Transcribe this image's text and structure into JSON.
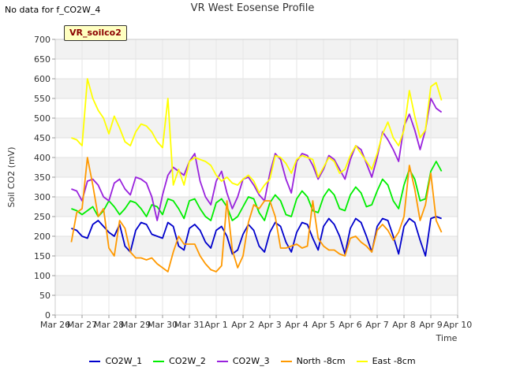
{
  "nodata": "No data for f_CO2W_4",
  "station": "VR_soilco2",
  "chart_data": {
    "type": "line",
    "title": "VR West Eosense Profile",
    "xlabel": "Time",
    "ylabel": "Soil CO2 (mV)",
    "ylim": [
      0,
      700
    ],
    "yticks": [
      0,
      50,
      100,
      150,
      200,
      250,
      300,
      350,
      400,
      450,
      500,
      550,
      600,
      650,
      700
    ],
    "xticks": [
      "Mar 26",
      "Mar 27",
      "Mar 28",
      "Mar 29",
      "Mar 30",
      "Mar 31",
      "Apr 1",
      "Apr 2",
      "Apr 3",
      "Apr 4",
      "Apr 5",
      "Apr 6",
      "Apr 7",
      "Apr 8",
      "Apr 9",
      "Apr 10"
    ],
    "xlim": [
      0,
      15
    ],
    "x": [
      0.6,
      0.8,
      1.0,
      1.2,
      1.4,
      1.6,
      1.8,
      2.0,
      2.2,
      2.4,
      2.6,
      2.8,
      3.0,
      3.2,
      3.4,
      3.6,
      3.8,
      4.0,
      4.2,
      4.4,
      4.6,
      4.8,
      5.0,
      5.2,
      5.4,
      5.6,
      5.8,
      6.0,
      6.2,
      6.4,
      6.6,
      6.8,
      7.0,
      7.2,
      7.4,
      7.6,
      7.8,
      8.0,
      8.2,
      8.4,
      8.6,
      8.8,
      9.0,
      9.2,
      9.4,
      9.6,
      9.8,
      10.0,
      10.2,
      10.4,
      10.6,
      10.8,
      11.0,
      11.2,
      11.4,
      11.6,
      11.8,
      12.0,
      12.2,
      12.4,
      12.6,
      12.8,
      13.0,
      13.2,
      13.4,
      13.6,
      13.8,
      14.0,
      14.2,
      14.4
    ],
    "grid": true,
    "legend_position": "bottom",
    "series": [
      {
        "name": "CO2W_1",
        "color": "#0000cc",
        "values": [
          220,
          215,
          200,
          195,
          230,
          240,
          225,
          210,
          200,
          230,
          175,
          160,
          215,
          235,
          230,
          205,
          200,
          195,
          235,
          225,
          175,
          165,
          220,
          230,
          215,
          185,
          170,
          215,
          225,
          200,
          155,
          165,
          205,
          230,
          215,
          175,
          160,
          210,
          235,
          225,
          185,
          160,
          210,
          235,
          230,
          195,
          165,
          225,
          245,
          230,
          200,
          155,
          220,
          245,
          235,
          200,
          160,
          225,
          245,
          240,
          200,
          155,
          225,
          245,
          235,
          190,
          150,
          245,
          250,
          245
        ]
      },
      {
        "name": "CO2W_2",
        "color": "#00ee00",
        "values": [
          270,
          265,
          255,
          265,
          275,
          250,
          265,
          290,
          275,
          255,
          270,
          290,
          285,
          270,
          250,
          280,
          275,
          255,
          295,
          290,
          270,
          245,
          290,
          295,
          270,
          250,
          240,
          285,
          295,
          275,
          240,
          250,
          275,
          300,
          295,
          260,
          240,
          285,
          305,
          290,
          255,
          250,
          295,
          315,
          300,
          265,
          260,
          300,
          320,
          305,
          270,
          265,
          305,
          325,
          310,
          275,
          280,
          315,
          345,
          330,
          290,
          270,
          330,
          370,
          345,
          290,
          295,
          365,
          390,
          365
        ]
      },
      {
        "name": "CO2W_3",
        "color": "#9922dd",
        "values": [
          320,
          315,
          290,
          340,
          345,
          330,
          300,
          290,
          335,
          345,
          320,
          305,
          350,
          345,
          335,
          300,
          240,
          305,
          355,
          375,
          365,
          355,
          390,
          410,
          340,
          300,
          280,
          340,
          365,
          310,
          270,
          300,
          345,
          350,
          330,
          305,
          290,
          360,
          410,
          395,
          345,
          310,
          390,
          410,
          405,
          380,
          345,
          370,
          405,
          395,
          370,
          345,
          395,
          430,
          420,
          385,
          350,
          400,
          465,
          445,
          420,
          390,
          480,
          510,
          470,
          420,
          470,
          550,
          525,
          515
        ]
      },
      {
        "name": "North -8cm",
        "color": "#ff9900",
        "values": [
          185,
          260,
          270,
          400,
          330,
          250,
          270,
          170,
          150,
          240,
          220,
          160,
          145,
          145,
          140,
          145,
          130,
          120,
          110,
          160,
          200,
          180,
          180,
          180,
          150,
          130,
          115,
          110,
          125,
          290,
          165,
          120,
          150,
          235,
          280,
          270,
          290,
          290,
          250,
          170,
          170,
          175,
          180,
          170,
          175,
          290,
          195,
          175,
          165,
          165,
          155,
          150,
          195,
          200,
          185,
          175,
          160,
          215,
          230,
          215,
          190,
          210,
          250,
          380,
          320,
          240,
          280,
          360,
          240,
          210
        ]
      },
      {
        "name": "East -8cm",
        "color": "#ffff00",
        "values": [
          450,
          445,
          430,
          600,
          550,
          520,
          500,
          460,
          505,
          475,
          440,
          430,
          465,
          485,
          480,
          465,
          440,
          425,
          550,
          330,
          370,
          330,
          390,
          400,
          395,
          390,
          380,
          355,
          340,
          350,
          335,
          330,
          345,
          355,
          340,
          310,
          330,
          345,
          405,
          400,
          385,
          360,
          395,
          405,
          400,
          395,
          350,
          375,
          400,
          390,
          360,
          370,
          405,
          430,
          410,
          390,
          370,
          410,
          460,
          490,
          450,
          430,
          470,
          570,
          505,
          450,
          470,
          580,
          590,
          545
        ]
      }
    ]
  }
}
